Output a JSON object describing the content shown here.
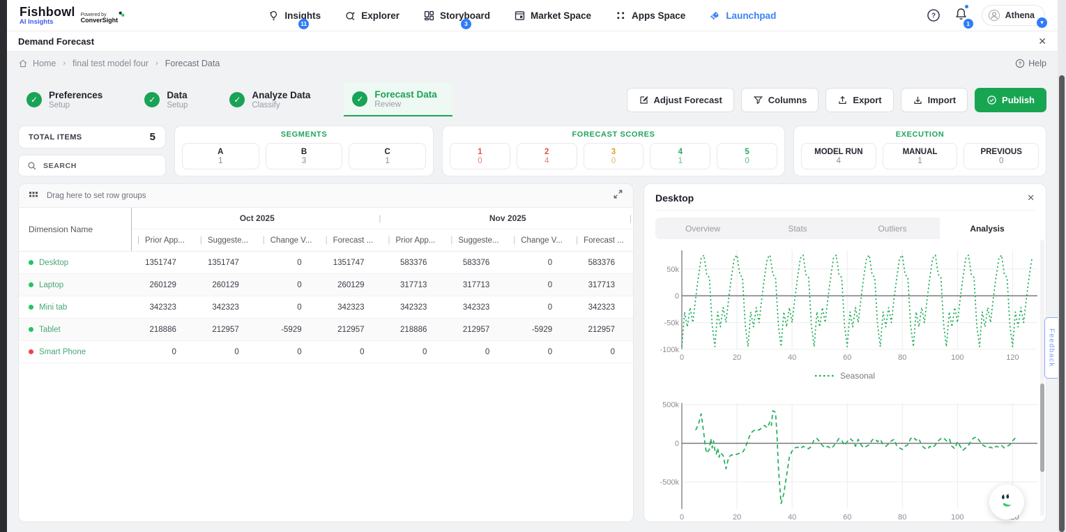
{
  "topnav": {
    "brand": "Fishbowl",
    "brand_sub": "AI Insights",
    "powered_by": "Powered by",
    "powered_brand": "ConverSight",
    "items": [
      {
        "label": "Insights",
        "icon": "bulb-icon",
        "badge": "11",
        "active": false
      },
      {
        "label": "Explorer",
        "icon": "explorer-icon",
        "badge": "",
        "active": false
      },
      {
        "label": "Storyboard",
        "icon": "storyboard-icon",
        "badge": "3",
        "active": false
      },
      {
        "label": "Market Space",
        "icon": "market-icon",
        "badge": "",
        "active": false
      },
      {
        "label": "Apps Space",
        "icon": "apps-icon",
        "badge": "",
        "active": false
      },
      {
        "label": "Launchpad",
        "icon": "rocket-icon",
        "badge": "",
        "active": true
      }
    ],
    "bell_badge": "1",
    "user_name": "Athena"
  },
  "titlebar": {
    "title": "Demand Forecast"
  },
  "breadcrumb": {
    "items": [
      "Home",
      "final test model four",
      "Forecast Data"
    ],
    "help_label": "Help"
  },
  "steps": [
    {
      "title": "Preferences",
      "subtitle": "Setup",
      "active": false
    },
    {
      "title": "Data",
      "subtitle": "Setup",
      "active": false
    },
    {
      "title": "Analyze Data",
      "subtitle": "Classify",
      "active": false
    },
    {
      "title": "Forecast Data",
      "subtitle": "Review",
      "active": true
    }
  ],
  "actions": {
    "adjust": "Adjust Forecast",
    "columns": "Columns",
    "export": "Export",
    "import": "Import",
    "publish": "Publish"
  },
  "summary": {
    "total_items_label": "TOTAL ITEMS",
    "total_items_value": "5",
    "search_placeholder": "SEARCH",
    "segments": {
      "title": "SEGMENTS",
      "items": [
        {
          "label": "A",
          "value": "1"
        },
        {
          "label": "B",
          "value": "3"
        },
        {
          "label": "C",
          "value": "1"
        }
      ]
    },
    "forecast_scores": {
      "title": "FORECAST SCORES",
      "items": [
        {
          "label": "1",
          "value": "0",
          "color": "#e2504c"
        },
        {
          "label": "2",
          "value": "4",
          "color": "#e2504c"
        },
        {
          "label": "3",
          "value": "0",
          "color": "#dfa02f"
        },
        {
          "label": "4",
          "value": "1",
          "color": "#2aa764"
        },
        {
          "label": "5",
          "value": "0",
          "color": "#2aa764"
        }
      ]
    },
    "execution": {
      "title": "EXECUTION",
      "items": [
        {
          "label": "MODEL RUN",
          "value": "4"
        },
        {
          "label": "MANUAL",
          "value": "1"
        },
        {
          "label": "PREVIOUS",
          "value": "0"
        }
      ]
    }
  },
  "table": {
    "drag_hint": "Drag here to set row groups",
    "dimension_header": "Dimension Name",
    "groups": [
      "Oct 2025",
      "Nov 2025"
    ],
    "sub_headers": [
      "Prior App...",
      "Suggeste...",
      "Change V...",
      "Forecast ..."
    ],
    "rows": [
      {
        "name": "Desktop",
        "dot_color": "#22c55e",
        "values": [
          "1351747",
          "1351747",
          "0",
          "1351747",
          "583376",
          "583376",
          "0",
          "583376"
        ]
      },
      {
        "name": "Laptop",
        "dot_color": "#22c55e",
        "values": [
          "260129",
          "260129",
          "0",
          "260129",
          "317713",
          "317713",
          "0",
          "317713"
        ]
      },
      {
        "name": "Mini tab",
        "dot_color": "#22c55e",
        "values": [
          "342323",
          "342323",
          "0",
          "342323",
          "342323",
          "342323",
          "0",
          "342323"
        ]
      },
      {
        "name": "Tablet",
        "dot_color": "#22c55e",
        "values": [
          "218886",
          "212957",
          "-5929",
          "212957",
          "218886",
          "212957",
          "-5929",
          "212957"
        ]
      },
      {
        "name": "Smart Phone",
        "dot_color": "#ef4444",
        "values": [
          "0",
          "0",
          "0",
          "0",
          "0",
          "0",
          "0",
          "0"
        ]
      }
    ]
  },
  "panel": {
    "title": "Desktop",
    "tabs": [
      {
        "label": "Overview",
        "active": false
      },
      {
        "label": "Stats",
        "active": false
      },
      {
        "label": "Outliers",
        "active": false
      },
      {
        "label": "Analysis",
        "active": true
      }
    ]
  },
  "chart_data": [
    {
      "type": "line",
      "name": "seasonal-decomposition",
      "legend": [
        "Seasonal"
      ],
      "color": "#1fae5a",
      "line_style": "dotted",
      "grid": true,
      "x_range": [
        0,
        129
      ],
      "x_ticks": [
        0,
        20,
        40,
        60,
        80,
        100,
        120
      ],
      "y_range_k": [
        -100,
        85
      ],
      "y_ticks_k": [
        {
          "label": "50k",
          "v": 50
        },
        {
          "label": "0",
          "v": 0
        },
        {
          "label": "-50k",
          "v": -50
        },
        {
          "label": "-100k",
          "v": -100
        }
      ],
      "period": 12,
      "n_points": 128,
      "pattern_k": [
        -95,
        -30,
        -58,
        -22,
        -50,
        -5,
        35,
        70,
        76,
        40,
        34,
        -55
      ]
    },
    {
      "type": "line",
      "name": "residual",
      "legend": [],
      "color": "#1fae5a",
      "line_style": "dashed",
      "grid": true,
      "x_range": [
        0,
        129
      ],
      "x_ticks": [
        0,
        20,
        40,
        60,
        80,
        100,
        120
      ],
      "y_range_k": [
        -850,
        520
      ],
      "y_ticks_k": [
        {
          "label": "500k",
          "v": 500
        },
        {
          "label": "0",
          "v": 0
        },
        {
          "label": "-500k",
          "v": -500
        }
      ],
      "points_k": [
        [
          5,
          170
        ],
        [
          6,
          240
        ],
        [
          7,
          380
        ],
        [
          8,
          120
        ],
        [
          8.5,
          -40
        ],
        [
          9,
          -130
        ],
        [
          10,
          -80
        ],
        [
          10.5,
          60
        ],
        [
          11,
          -60
        ],
        [
          11.5,
          30
        ],
        [
          12,
          -90
        ],
        [
          12.5,
          -140
        ],
        [
          13,
          -60
        ],
        [
          13.5,
          -180
        ],
        [
          14,
          -120
        ],
        [
          15,
          -160
        ],
        [
          15.5,
          -250
        ],
        [
          16,
          -330
        ],
        [
          17,
          -180
        ],
        [
          18,
          -150
        ],
        [
          19,
          -160
        ],
        [
          20,
          -140
        ],
        [
          21,
          -130
        ],
        [
          22,
          -120
        ],
        [
          23,
          -60
        ],
        [
          24,
          40
        ],
        [
          25,
          130
        ],
        [
          26,
          160
        ],
        [
          27,
          180
        ],
        [
          28,
          170
        ],
        [
          29,
          200
        ],
        [
          30,
          230
        ],
        [
          31,
          200
        ],
        [
          32,
          280
        ],
        [
          32.5,
          230
        ],
        [
          33,
          420
        ],
        [
          34,
          400
        ],
        [
          34.5,
          120
        ],
        [
          35,
          -300
        ],
        [
          36,
          -780
        ],
        [
          37,
          -650
        ],
        [
          38,
          -420
        ],
        [
          39,
          -180
        ],
        [
          40,
          -100
        ],
        [
          41,
          -60
        ],
        [
          42,
          -50
        ],
        [
          43,
          -70
        ],
        [
          44,
          -40
        ],
        [
          45,
          -60
        ],
        [
          46,
          -70
        ],
        [
          47,
          -40
        ],
        [
          48,
          50
        ],
        [
          49,
          60
        ],
        [
          50,
          20
        ],
        [
          51,
          -30
        ],
        [
          52,
          -60
        ],
        [
          53,
          -40
        ],
        [
          54,
          -70
        ],
        [
          55,
          -40
        ],
        [
          56,
          10
        ],
        [
          57,
          60
        ],
        [
          58,
          40
        ],
        [
          59,
          -30
        ],
        [
          60,
          20
        ],
        [
          61,
          60
        ],
        [
          62,
          30
        ],
        [
          63,
          -40
        ],
        [
          64,
          50
        ],
        [
          65,
          -20
        ],
        [
          66,
          -60
        ],
        [
          67,
          -40
        ],
        [
          68,
          -20
        ],
        [
          69,
          40
        ],
        [
          70,
          60
        ],
        [
          71,
          20
        ],
        [
          72,
          50
        ],
        [
          73,
          -20
        ],
        [
          74,
          -40
        ],
        [
          75,
          -10
        ],
        [
          76,
          30
        ],
        [
          77,
          50
        ],
        [
          78,
          -40
        ],
        [
          79,
          -60
        ],
        [
          80,
          -80
        ],
        [
          81,
          -40
        ],
        [
          82,
          -20
        ],
        [
          83,
          60
        ],
        [
          84,
          80
        ],
        [
          85,
          40
        ],
        [
          86,
          60
        ],
        [
          87,
          -30
        ],
        [
          88,
          -60
        ],
        [
          89,
          -80
        ],
        [
          90,
          -40
        ],
        [
          91,
          -60
        ],
        [
          92,
          -20
        ],
        [
          93,
          30
        ],
        [
          94,
          60
        ],
        [
          95,
          70
        ],
        [
          96,
          30
        ],
        [
          97,
          60
        ],
        [
          98,
          -40
        ],
        [
          99,
          -70
        ],
        [
          100,
          20
        ],
        [
          101,
          -40
        ],
        [
          102,
          -90
        ],
        [
          103,
          -60
        ],
        [
          104,
          -30
        ],
        [
          105,
          40
        ],
        [
          106,
          70
        ],
        [
          107,
          80
        ],
        [
          108,
          30
        ],
        [
          109,
          -20
        ],
        [
          110,
          -40
        ],
        [
          111,
          -60
        ],
        [
          112,
          -50
        ],
        [
          113,
          -70
        ],
        [
          114,
          -40
        ],
        [
          115,
          -50
        ],
        [
          116,
          -30
        ],
        [
          117,
          -60
        ],
        [
          118,
          -40
        ],
        [
          119,
          -20
        ],
        [
          120,
          30
        ],
        [
          121,
          70
        ]
      ]
    }
  ],
  "feedback_label": "Feedback"
}
